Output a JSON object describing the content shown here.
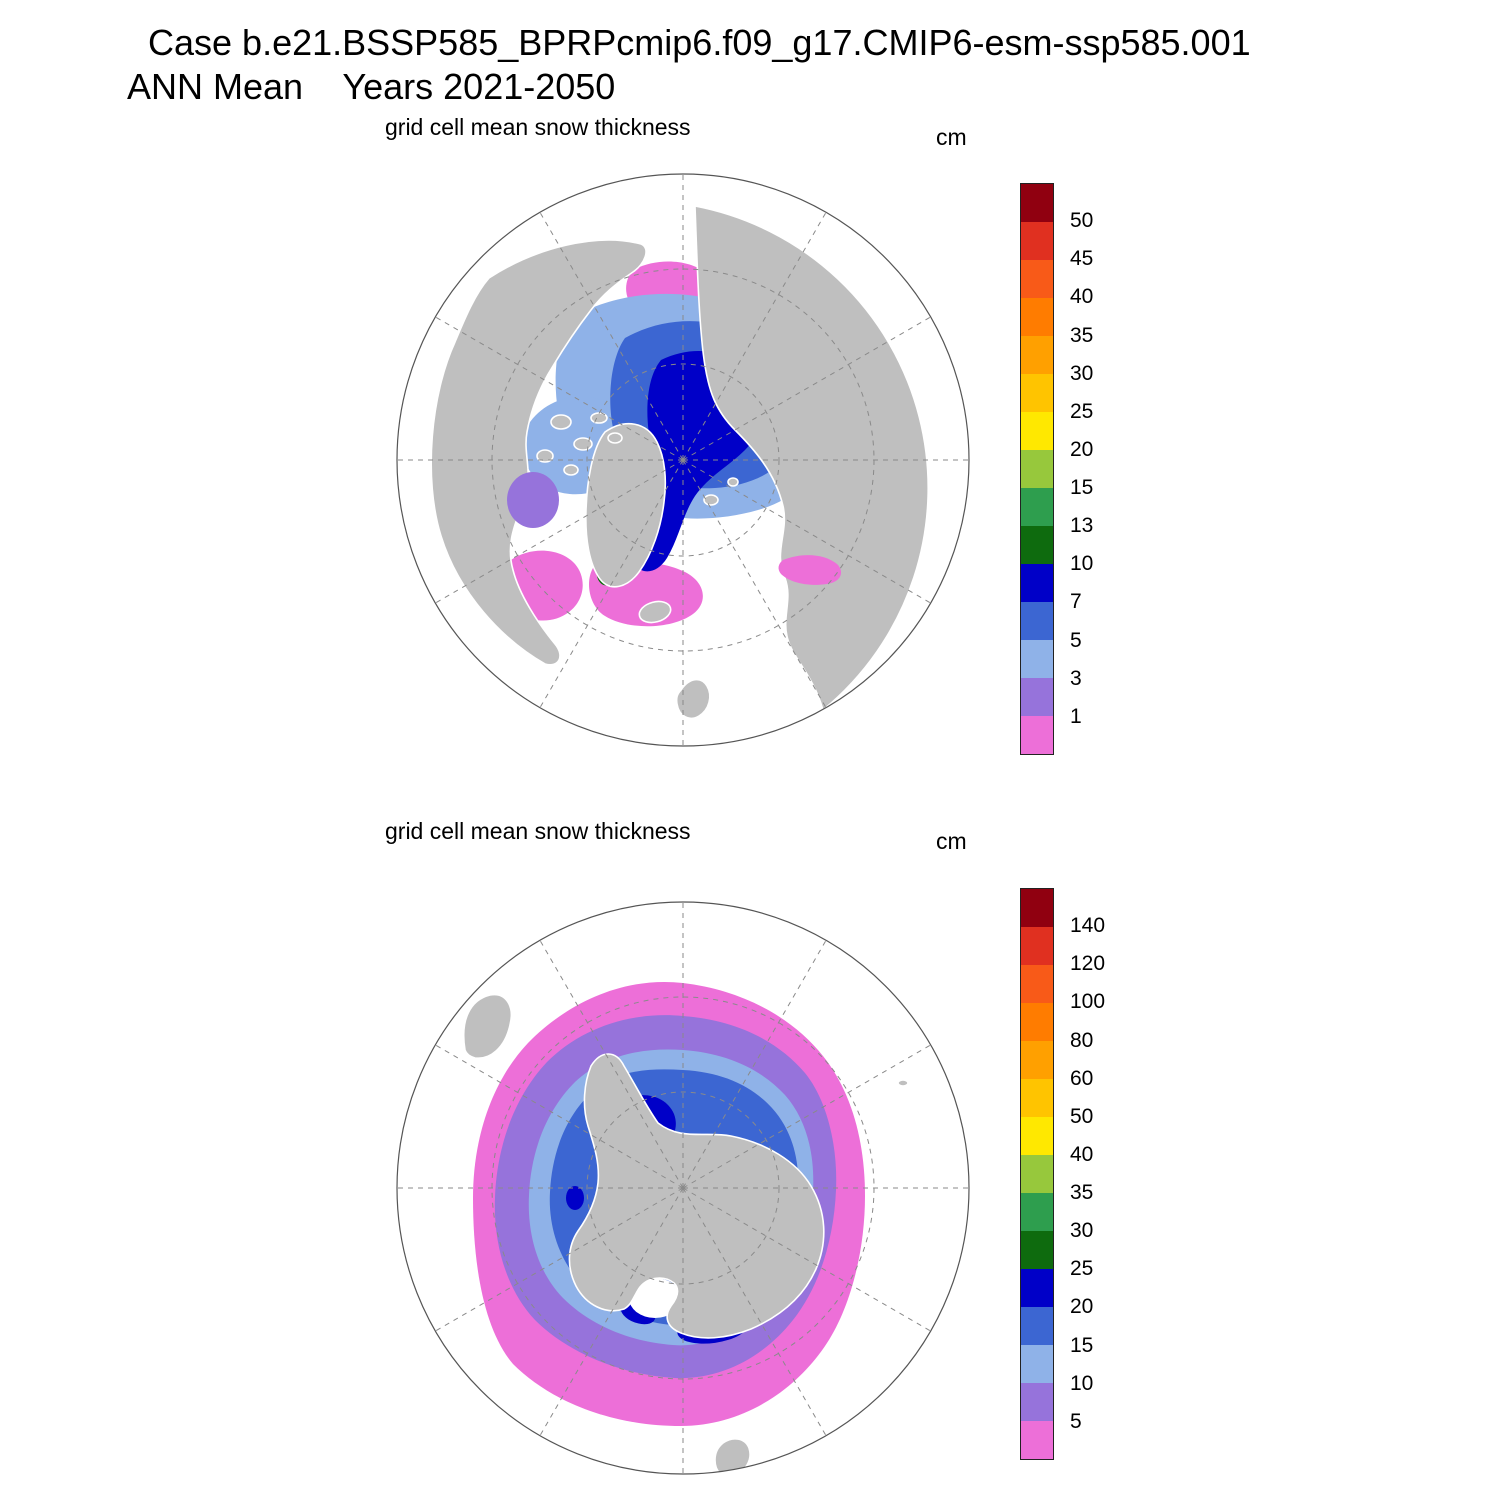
{
  "header": {
    "title": "Case b.e21.BSSP585_BPRPcmip6.f09_g17.CMIP6-esm-ssp585.001",
    "subtitle": "ANN Mean    Years 2021-2050"
  },
  "maps": [
    {
      "id": "northern-hemisphere",
      "title": "grid cell mean snow thickness",
      "units": "cm",
      "colorbar": {
        "labels_top_to_bottom": [
          "50",
          "45",
          "40",
          "35",
          "30",
          "25",
          "20",
          "15",
          "13",
          "10",
          "7",
          "5",
          "3",
          "1"
        ],
        "colors_top_to_bottom": [
          "#900010",
          "#E03020",
          "#F85A18",
          "#FF7C00",
          "#FFA000",
          "#FFC400",
          "#FFE800",
          "#97C83C",
          "#2E9E4E",
          "#0E6B0E",
          "#0000C8",
          "#3C66D2",
          "#8FB2E8",
          "#9673DB",
          "#ED6FD8"
        ]
      }
    },
    {
      "id": "southern-hemisphere",
      "title": "grid cell mean snow thickness",
      "units": "cm",
      "colorbar": {
        "labels_top_to_bottom": [
          "140",
          "120",
          "100",
          "80",
          "60",
          "50",
          "40",
          "35",
          "30",
          "25",
          "20",
          "15",
          "10",
          "5"
        ],
        "colors_top_to_bottom": [
          "#900010",
          "#E03020",
          "#F85A18",
          "#FF7C00",
          "#FFA000",
          "#FFC400",
          "#FFE800",
          "#97C83C",
          "#2E9E4E",
          "#0E6B0E",
          "#0000C8",
          "#3C66D2",
          "#8FB2E8",
          "#9673DB",
          "#ED6FD8"
        ]
      }
    }
  ],
  "colors": {
    "land": "#BFBFBF",
    "ocean": "#FFFFFF",
    "graticule": "#8A8A8A"
  },
  "chart_data": [
    {
      "type": "heatmap",
      "projection": "north-polar-stereographic",
      "title": "grid cell mean snow thickness",
      "units": "cm",
      "case": "b.e21.BSSP585_BPRPcmip6.f09_g17.CMIP6-esm-ssp585.001",
      "statistic": "ANN Mean",
      "years": "2021-2050",
      "contour_levels": [
        1,
        3,
        5,
        7,
        10,
        13,
        15,
        20,
        25,
        30,
        35,
        40,
        45,
        50
      ],
      "palette_low_to_high": [
        "#ED6FD8",
        "#9673DB",
        "#8FB2E8",
        "#3C66D2",
        "#0000C8",
        "#0E6B0E",
        "#2E9E4E",
        "#97C83C",
        "#FFE800",
        "#FFC400",
        "#FFA000",
        "#FF7C00",
        "#F85A18",
        "#E03020",
        "#900010"
      ],
      "legend_position": "right"
    },
    {
      "type": "heatmap",
      "projection": "south-polar-stereographic",
      "title": "grid cell mean snow thickness",
      "units": "cm",
      "case": "b.e21.BSSP585_BPRPcmip6.f09_g17.CMIP6-esm-ssp585.001",
      "statistic": "ANN Mean",
      "years": "2021-2050",
      "contour_levels": [
        5,
        10,
        15,
        20,
        25,
        30,
        35,
        40,
        50,
        60,
        80,
        100,
        120,
        140
      ],
      "palette_low_to_high": [
        "#ED6FD8",
        "#9673DB",
        "#8FB2E8",
        "#3C66D2",
        "#0000C8",
        "#0E6B0E",
        "#2E9E4E",
        "#97C83C",
        "#FFE800",
        "#FFC400",
        "#FFA000",
        "#FF7C00",
        "#F85A18",
        "#E03020",
        "#900010"
      ],
      "legend_position": "right"
    }
  ]
}
